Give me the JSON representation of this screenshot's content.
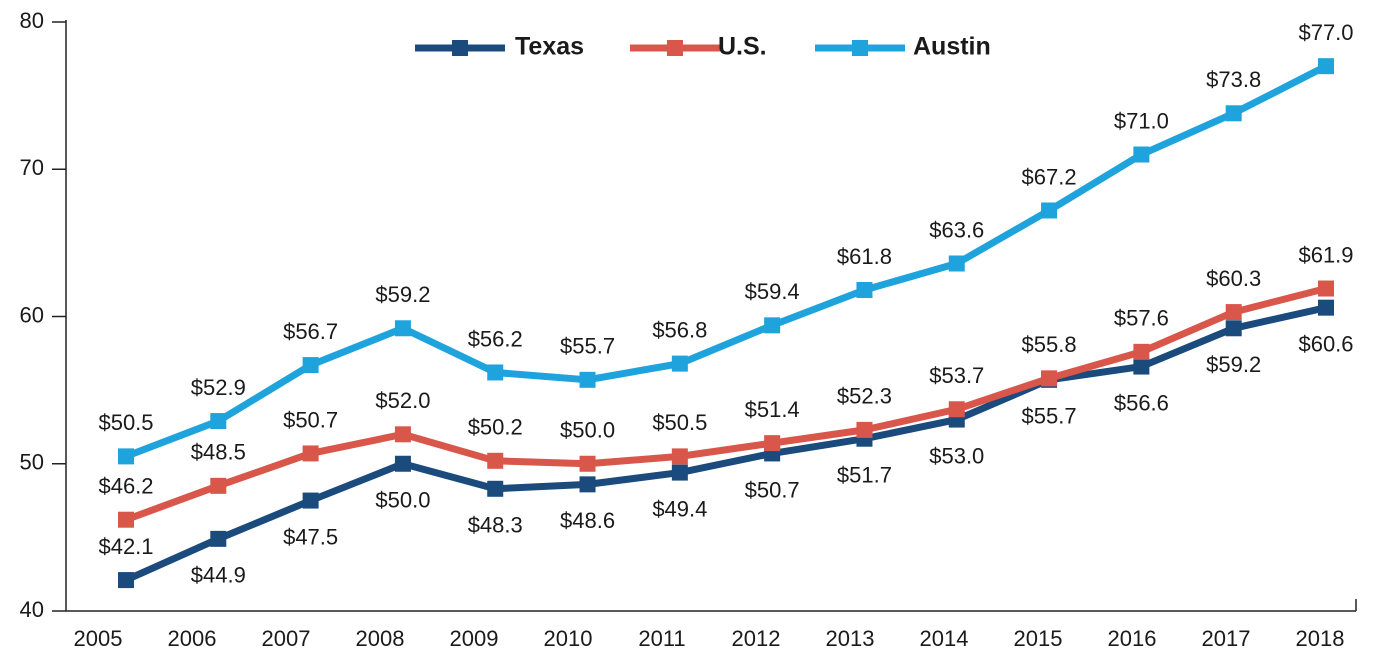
{
  "chart_data": {
    "type": "line",
    "categories": [
      "2005",
      "2006",
      "2007",
      "2008",
      "2009",
      "2010",
      "2011",
      "2012",
      "2013",
      "2014",
      "2015",
      "2016",
      "2017",
      "2018"
    ],
    "series": [
      {
        "name": "Texas",
        "color": "#1b4a7c",
        "values": [
          42.1,
          44.9,
          47.5,
          50.0,
          48.3,
          48.6,
          49.4,
          50.7,
          51.7,
          53.0,
          55.7,
          56.6,
          59.2,
          60.6
        ],
        "value_labels": [
          "$42.1",
          "$44.9",
          "$47.5",
          "$50.0",
          "$48.3",
          "$48.6",
          "$49.4",
          "$50.7",
          "$51.7",
          "$53.0",
          "$55.7",
          "$56.6",
          "$59.2",
          "$60.6"
        ]
      },
      {
        "name": "U.S.",
        "color": "#d9574a",
        "values": [
          46.2,
          48.5,
          50.7,
          52.0,
          50.2,
          50.0,
          50.5,
          51.4,
          52.3,
          53.7,
          55.8,
          57.6,
          60.3,
          61.9
        ],
        "value_labels": [
          "$46.2",
          "$48.5",
          "$50.7",
          "$52.0",
          "$50.2",
          "$50.0",
          "$50.5",
          "$51.4",
          "$52.3",
          "$53.7",
          "$55.8",
          "$57.6",
          "$60.3",
          "$61.9"
        ]
      },
      {
        "name": "Austin",
        "color": "#1fa3dc",
        "values": [
          50.5,
          52.9,
          56.7,
          59.2,
          56.2,
          55.7,
          56.8,
          59.4,
          61.8,
          63.6,
          67.2,
          71.0,
          73.8,
          77.0
        ],
        "value_labels": [
          "$50.5",
          "$52.9",
          "$56.7",
          "$59.2",
          "$56.2",
          "$55.7",
          "$56.8",
          "$59.4",
          "$61.8",
          "$63.6",
          "$67.2",
          "$71.0",
          "$73.8",
          "$77.0"
        ]
      }
    ],
    "ylim": [
      40,
      80
    ],
    "yticks": [
      40,
      50,
      60,
      70,
      80
    ],
    "grid": false,
    "legend": "top"
  }
}
